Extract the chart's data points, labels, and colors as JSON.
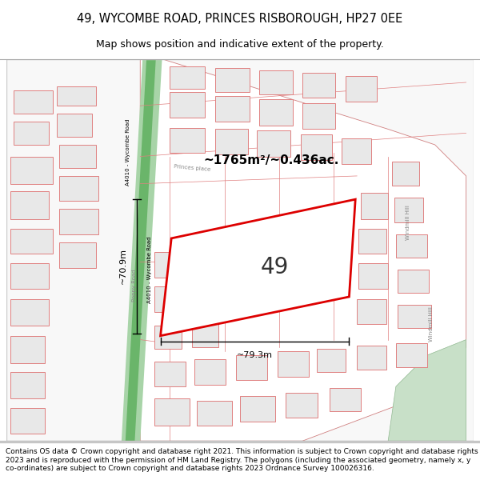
{
  "title_line1": "49, WYCOMBE ROAD, PRINCES RISBOROUGH, HP27 0EE",
  "title_line2": "Map shows position and indicative extent of the property.",
  "footer_text": "Contains OS data © Crown copyright and database right 2021. This information is subject to Crown copyright and database rights 2023 and is reproduced with the permission of HM Land Registry. The polygons (including the associated geometry, namely x, y co-ordinates) are subject to Crown copyright and database rights 2023 Ordnance Survey 100026316.",
  "map_bg": "#f5f5f5",
  "building_fill": "#e8e8e8",
  "building_stroke": "#e08080",
  "road_green_dark": "#6ab56a",
  "road_green_light": "#a8d4a8",
  "area_label": "~1765m²/~0.436ac.",
  "number_label": "49",
  "dim_width": "~79.3m",
  "dim_height": "~70.9m",
  "highlight_stroke": "#dd0000",
  "title_fontsize": 10.5,
  "subtitle_fontsize": 9,
  "footer_fontsize": 6.5,
  "label_color": "#555555",
  "park_fill": "#c8e0c8"
}
